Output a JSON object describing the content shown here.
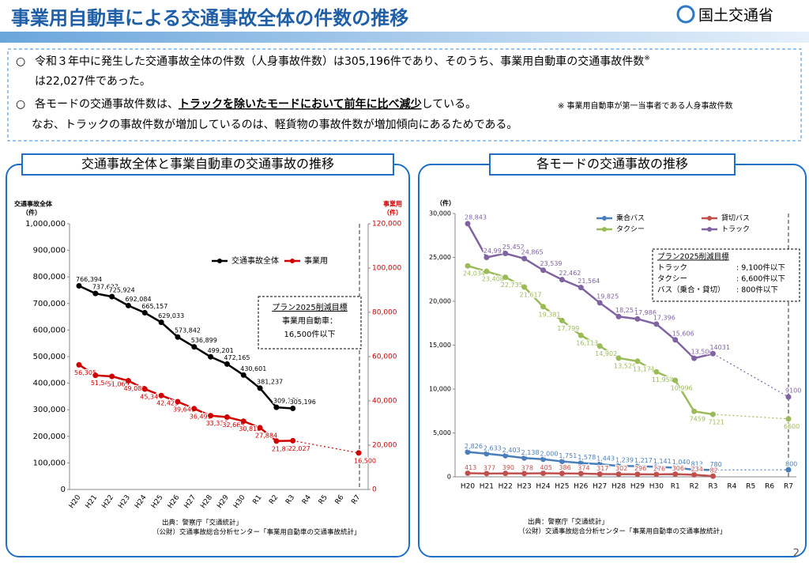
{
  "header": {
    "title": "事業用自動車による交通事故全体の件数の推移",
    "logo": "国土交通省"
  },
  "summary": {
    "bullet1": {
      "text": "令和３年中に発生した交通事故全体の件数（人身事故件数）は305,196件であり、そのうち、事業用自動車の交通事故件数",
      "mark": "※",
      "text2": "は22,027件であった。"
    },
    "bullet2": {
      "text": "各モードの交通事故件数は、",
      "emphasis": "トラックを除いたモードにおいて前年に比べ減少",
      "text2": "している。",
      "note": "※ 事業用自動車が第一当事者である人身事故件数",
      "text3": "なお、トラックの事故件数が増加しているのは、軽貨物の事故件数が増加傾向にあるためである。"
    }
  },
  "page_number": "2",
  "chart_data": [
    {
      "type": "line",
      "title": "交通事故全体と事業自動車の交通事故の推移",
      "y_label": [
        "交通事故全体",
        "（件）"
      ],
      "y2_label": [
        "事業用",
        "（件）"
      ],
      "categories": [
        "H20",
        "H21",
        "H22",
        "H23",
        "H24",
        "H25",
        "H26",
        "H27",
        "H28",
        "H29",
        "H30",
        "R1",
        "R2",
        "R3",
        "R4",
        "R5",
        "R6",
        "R7"
      ],
      "series": [
        {
          "name": "交通事故全体",
          "color": "#000000",
          "values": [
            766394,
            737637,
            725924,
            692084,
            665157,
            629033,
            573842,
            536899,
            499201,
            472165,
            430601,
            381237,
            309178,
            305196,
            null,
            null,
            null,
            null
          ],
          "value_labels": [
            "766,394",
            "737,637",
            "725,924",
            "692,084",
            "665,157",
            "629,033",
            "573,842",
            "536,899",
            "499,201",
            "472,165",
            "430,601",
            "381,237",
            "309,178",
            "305,196",
            null,
            null,
            null,
            null
          ]
        },
        {
          "name": "事業用",
          "color": "#d00000",
          "axis": "y2",
          "values": [
            56305,
            51544,
            51069,
            49087,
            45347,
            42425,
            39649,
            36499,
            33336,
            32665,
            30818,
            27884,
            21871,
            22027,
            null,
            null,
            null,
            16500
          ],
          "value_labels": [
            "56,305",
            "51,544",
            "51,069",
            "49,087",
            "45,347",
            "42,425",
            "39,649",
            "36,499",
            "33,336",
            "32,665",
            "30,818",
            "27,884",
            "21,871",
            "22,027",
            null,
            null,
            null,
            "16,500"
          ]
        }
      ],
      "ylim": [
        0,
        1000000
      ],
      "yticks": [
        0,
        {
          "value": 100000,
          "label": "100,000"
        },
        {
          "value": 200000,
          "label": "200,000"
        },
        {
          "value": 300000,
          "label": "300,000"
        },
        {
          "value": 400000,
          "label": "400,000"
        },
        {
          "value": 500000,
          "label": "500,000"
        },
        {
          "value": 600000,
          "label": "600,000"
        },
        {
          "value": 700000,
          "label": "700,000"
        },
        {
          "value": 800000,
          "label": "800,000"
        },
        {
          "value": 900000,
          "label": "900,000"
        },
        {
          "value": 1000000,
          "label": "1,000,000"
        }
      ],
      "y2lim": [
        0,
        120000
      ],
      "y2ticks": [
        0,
        {
          "value": 20000,
          "label": "20,000"
        },
        {
          "value": 40000,
          "label": "40,000"
        },
        {
          "value": 60000,
          "label": "60,000"
        },
        {
          "value": 80000,
          "label": "80,000"
        },
        {
          "value": 100000,
          "label": "100,000"
        },
        {
          "value": 120000,
          "label": "120,000"
        }
      ],
      "grid": false,
      "annotation": [
        "プラン2025削減目標",
        "事業用自動車：",
        "16,500件以下"
      ],
      "source": [
        "出典：警察庁「交通統計」",
        "（公財）交通事故総合分析センター「事業用自動車の交通事故統計」"
      ]
    },
    {
      "type": "line",
      "title": "各モードの交通事故の推移",
      "y_label": [
        "（件）"
      ],
      "categories": [
        "H20",
        "H21",
        "H22",
        "H23",
        "H24",
        "H25",
        "H26",
        "H27",
        "H28",
        "H29",
        "H30",
        "R1",
        "R2",
        "R3",
        "R4",
        "R5",
        "R6",
        "R7"
      ],
      "series": [
        {
          "name": "乗合バス",
          "color": "#4a7ebb",
          "values": [
            2826,
            2633,
            2403,
            2138,
            2000,
            1751,
            1578,
            1443,
            1239,
            1217,
            1141,
            1040,
            813,
            780,
            null,
            null,
            null,
            800
          ],
          "value_labels": [
            "2,826",
            "2,633",
            "2,403",
            "2,138",
            "2,000",
            "1,751",
            "1,578",
            "1,443",
            "1,239",
            "1,217",
            "1,141",
            "1,040",
            "813",
            "780",
            null,
            null,
            null,
            "800"
          ]
        },
        {
          "name": "貸切バス",
          "color": "#c0504d",
          "values": [
            413,
            377,
            390,
            378,
            405,
            386,
            374,
            317,
            302,
            296,
            276,
            306,
            234,
            82,
            null,
            null,
            null,
            null
          ],
          "value_labels": [
            "413",
            "377",
            "390",
            "378",
            "405",
            "386",
            "374",
            "317",
            "302",
            "296",
            "276",
            "306",
            "234",
            "82",
            null,
            null,
            null,
            null
          ]
        },
        {
          "name": "タクシー",
          "color": "#9bbb59",
          "values": [
            24034,
            23408,
            22735,
            21617,
            19381,
            17799,
            16113,
            14902,
            13526,
            13171,
            11954,
            10996,
            7459,
            7121,
            null,
            null,
            null,
            6600
          ],
          "value_labels": [
            "24,034",
            "23,408",
            "22,735",
            "21,617",
            "19,381",
            "17,799",
            "16,113",
            "14,902",
            "13,526",
            "13,171",
            "11,954",
            "10,996",
            "7459",
            "7121",
            null,
            null,
            null,
            "6600"
          ]
        },
        {
          "name": "トラック",
          "color": "#8064a2",
          "values": [
            28843,
            24997,
            25452,
            24865,
            23539,
            22462,
            21564,
            19825,
            18254,
            17986,
            17396,
            15606,
            13500,
            14031,
            null,
            null,
            null,
            9100
          ],
          "value_labels": [
            "28,843",
            "24,997",
            "25,452",
            "24,865",
            "23,539",
            "22,462",
            "21,564",
            "19,825",
            "18,254",
            "17,986",
            "17,396",
            "15,606",
            "13,500",
            "14031",
            null,
            null,
            null,
            "9100"
          ]
        }
      ],
      "ylim": [
        0,
        30000
      ],
      "yticks": [
        0,
        {
          "value": 5000,
          "label": "5,000"
        },
        {
          "value": 10000,
          "label": "10,000"
        },
        {
          "value": 15000,
          "label": "15,000"
        },
        {
          "value": 20000,
          "label": "20,000"
        },
        {
          "value": 25000,
          "label": "25,000"
        },
        {
          "value": 30000,
          "label": "30,000"
        }
      ],
      "grid": false,
      "annotation": [
        "プラン2025削減目標",
        "トラック",
        ": 9,100件以下",
        "タクシー",
        ": 6,600件以下",
        "バス（乗合・貸切）",
        ": 800件以下"
      ],
      "source": [
        "出典：警察庁「交通統計」",
        "（公財）交通事故総合分析センター「事業用自動車の交通事故統計」"
      ]
    }
  ]
}
